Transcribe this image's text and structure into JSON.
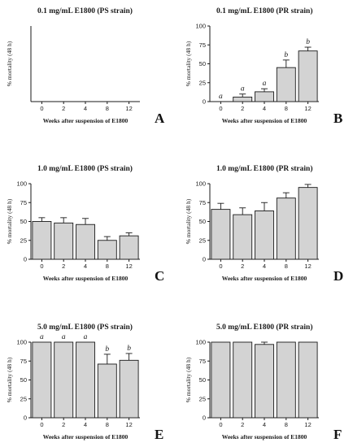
{
  "chart_data": [
    {
      "type": "bar",
      "panel": "A",
      "title": "0.1 mg/mL  E1800 (PS strain)",
      "xlabel": "Weeks after suspension of E1800",
      "ylabel": "% mortality  (48 h)",
      "categories": [
        "0",
        "2",
        "4",
        "8",
        "12"
      ],
      "values": [
        0,
        0,
        0,
        0,
        0
      ],
      "errors": [
        0,
        0,
        0,
        0,
        0
      ],
      "sig": [],
      "ylim": [
        0,
        100
      ],
      "yticks": [
        0,
        25,
        50,
        75,
        100
      ],
      "show_yticks": false
    },
    {
      "type": "bar",
      "panel": "B",
      "title": "0.1 mg/mL  E1800 (PR strain)",
      "xlabel": "Weeks after suspension of E1800",
      "ylabel": "% mortality  (48 h)",
      "categories": [
        "0",
        "2",
        "4",
        "8",
        "12"
      ],
      "values": [
        0,
        6,
        13,
        45,
        67
      ],
      "errors": [
        0,
        4,
        4,
        10,
        5
      ],
      "sig": [
        "a",
        "a",
        "a",
        "b",
        "b"
      ],
      "ylim": [
        0,
        100
      ],
      "yticks": [
        0,
        25,
        50,
        75,
        100
      ],
      "show_yticks": true
    },
    {
      "type": "bar",
      "panel": "C",
      "title": "1.0 mg/mL  E1800 (PS strain)",
      "xlabel": "Weeks after suspension of E1800",
      "ylabel": "% mortality  (48 h)",
      "categories": [
        "0",
        "2",
        "4",
        "8",
        "12"
      ],
      "values": [
        50,
        48,
        46,
        25,
        31
      ],
      "errors": [
        5,
        7,
        8,
        5,
        4
      ],
      "sig": [],
      "ylim": [
        0,
        100
      ],
      "yticks": [
        0,
        25,
        50,
        75,
        100
      ],
      "show_yticks": true
    },
    {
      "type": "bar",
      "panel": "D",
      "title": "1.0 mg/mL  E1800 (PR strain)",
      "xlabel": "Weeks after suspension of E1800",
      "ylabel": "% mortality  (48 h)",
      "categories": [
        "0",
        "2",
        "4",
        "8",
        "12"
      ],
      "values": [
        66,
        59,
        64,
        81,
        95
      ],
      "errors": [
        8,
        9,
        11,
        7,
        4
      ],
      "sig": [],
      "ylim": [
        0,
        100
      ],
      "yticks": [
        0,
        25,
        50,
        75,
        100
      ],
      "show_yticks": true
    },
    {
      "type": "bar",
      "panel": "E",
      "title": "5.0 mg/mL  E1800 (PS strain)",
      "xlabel": "Weeks after suspension of E1800",
      "ylabel": "% mortality  (48 h)",
      "categories": [
        "0",
        "2",
        "4",
        "8",
        "12"
      ],
      "values": [
        100,
        100,
        100,
        71,
        76
      ],
      "errors": [
        0,
        0,
        0,
        13,
        9
      ],
      "sig": [
        "a",
        "a",
        "a",
        "b",
        "b"
      ],
      "ylim": [
        0,
        100
      ],
      "yticks": [
        0,
        25,
        50,
        75,
        100
      ],
      "show_yticks": true
    },
    {
      "type": "bar",
      "panel": "F",
      "title": "5.0 mg/mL  E1800 (PR strain)",
      "xlabel": "Weeks after suspension of E1800",
      "ylabel": "% mortality  (48 h)",
      "categories": [
        "0",
        "2",
        "4",
        "8",
        "12"
      ],
      "values": [
        100,
        100,
        97,
        100,
        100
      ],
      "errors": [
        0,
        0,
        3,
        0,
        0
      ],
      "sig": [],
      "ylim": [
        0,
        100
      ],
      "yticks": [
        0,
        25,
        50,
        75,
        100
      ],
      "show_yticks": true
    }
  ]
}
